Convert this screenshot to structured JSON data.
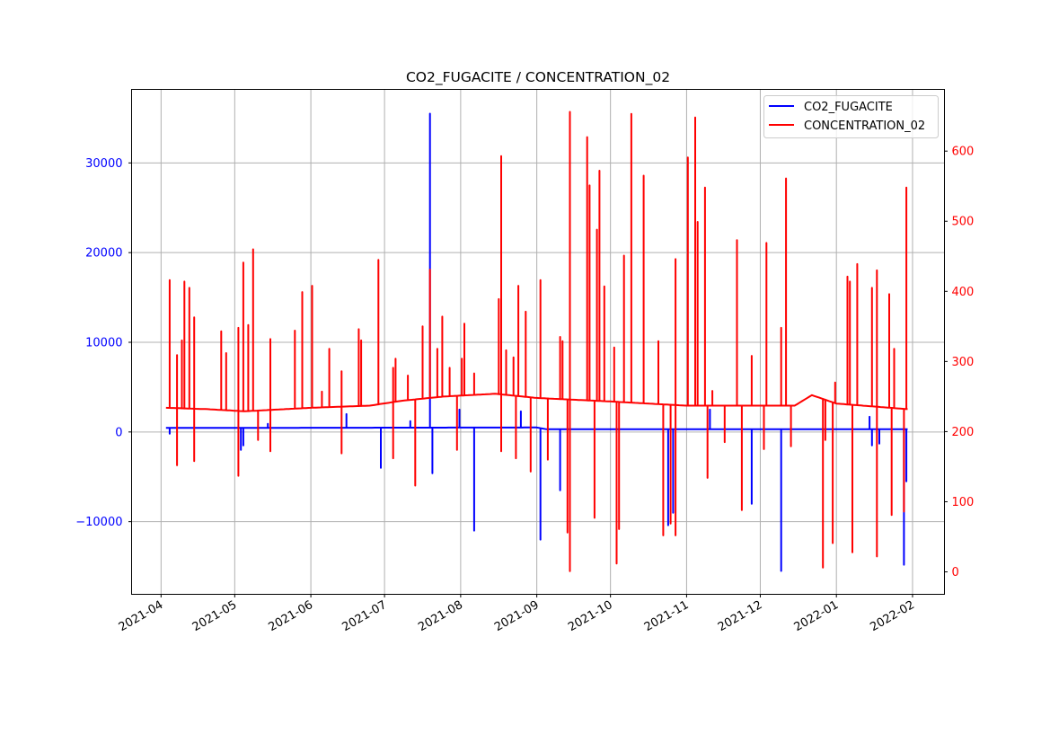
{
  "chart_data": {
    "type": "line",
    "title": "CO2_FUGACITE / CONCENTRATION_02",
    "xlabel": "",
    "ylabel_left": "",
    "ylabel_right": "",
    "xlim": [
      "2021-03-20",
      "2022-02-14"
    ],
    "ylim_left": [
      -18100,
      38200
    ],
    "ylim_right": [
      -32,
      688
    ],
    "grid": true,
    "legend_position": "top-right",
    "x_ticks": [
      "2021-04",
      "2021-05",
      "2021-06",
      "2021-07",
      "2021-08",
      "2021-09",
      "2021-10",
      "2021-11",
      "2021-12",
      "2022-01",
      "2022-02"
    ],
    "y_left_ticks": [
      -10000,
      0,
      10000,
      20000,
      30000
    ],
    "y_left_tick_labels": [
      "−10000",
      "0",
      "10000",
      "20000",
      "30000"
    ],
    "y_right_ticks": [
      0,
      100,
      200,
      300,
      400,
      500,
      600
    ],
    "y_right_tick_labels": [
      "0",
      "100",
      "200",
      "300",
      "400",
      "500",
      "600"
    ],
    "series": [
      {
        "name": "CO2_FUGACITE",
        "axis": "left",
        "color": "#0000ff",
        "start": "2021-04-03",
        "end": "2022-01-30",
        "baseline": [
          [
            "2021-04-03",
            450
          ],
          [
            "2021-09-01",
            500
          ],
          [
            "2021-09-05",
            300
          ],
          [
            "2022-01-30",
            300
          ]
        ],
        "spikes": [
          [
            "2021-04-04",
            -200
          ],
          [
            "2021-05-03",
            -2000
          ],
          [
            "2021-05-04",
            -1500
          ],
          [
            "2021-05-14",
            900
          ],
          [
            "2021-06-15",
            2000
          ],
          [
            "2021-06-29",
            -4000
          ],
          [
            "2021-07-11",
            1200
          ],
          [
            "2021-07-19",
            35500
          ],
          [
            "2021-07-20",
            -4600
          ],
          [
            "2021-07-31",
            2500
          ],
          [
            "2021-08-06",
            -11000
          ],
          [
            "2021-08-25",
            2300
          ],
          [
            "2021-09-02",
            -12000
          ],
          [
            "2021-09-10",
            -6500
          ],
          [
            "2021-10-24",
            -10400
          ],
          [
            "2021-10-26",
            -9000
          ],
          [
            "2021-11-10",
            2500
          ],
          [
            "2021-11-27",
            -8000
          ],
          [
            "2021-12-09",
            -15500
          ],
          [
            "2022-01-14",
            1700
          ],
          [
            "2022-01-15",
            -1500
          ],
          [
            "2022-01-18",
            -1300
          ],
          [
            "2022-01-28",
            -14800
          ],
          [
            "2022-01-29",
            -5500
          ]
        ]
      },
      {
        "name": "CONCENTRATION_02",
        "axis": "right",
        "color": "#ff0000",
        "start": "2021-04-03",
        "end": "2022-01-30",
        "baseline": [
          [
            "2021-04-03",
            234
          ],
          [
            "2021-04-20",
            232
          ],
          [
            "2021-05-05",
            229
          ],
          [
            "2021-06-01",
            234
          ],
          [
            "2021-06-25",
            237
          ],
          [
            "2021-07-08",
            244
          ],
          [
            "2021-07-25",
            250
          ],
          [
            "2021-08-15",
            254
          ],
          [
            "2021-09-01",
            248
          ],
          [
            "2021-10-01",
            243
          ],
          [
            "2021-11-01",
            237
          ],
          [
            "2021-12-15",
            237
          ],
          [
            "2021-12-22",
            252
          ],
          [
            "2022-01-01",
            240
          ],
          [
            "2022-01-30",
            232
          ]
        ],
        "spikes": [
          [
            "2021-04-04",
            416
          ],
          [
            "2021-04-07",
            309
          ],
          [
            "2021-04-07",
            152
          ],
          [
            "2021-04-09",
            330
          ],
          [
            "2021-04-10",
            414
          ],
          [
            "2021-04-12",
            405
          ],
          [
            "2021-04-14",
            363
          ],
          [
            "2021-04-14",
            158
          ],
          [
            "2021-04-25",
            343
          ],
          [
            "2021-04-27",
            312
          ],
          [
            "2021-05-02",
            348
          ],
          [
            "2021-05-02",
            137
          ],
          [
            "2021-05-04",
            441
          ],
          [
            "2021-05-06",
            352
          ],
          [
            "2021-05-08",
            460
          ],
          [
            "2021-05-10",
            188
          ],
          [
            "2021-05-15",
            332
          ],
          [
            "2021-05-15",
            172
          ],
          [
            "2021-05-25",
            344
          ],
          [
            "2021-05-28",
            399
          ],
          [
            "2021-06-01",
            408
          ],
          [
            "2021-06-05",
            257
          ],
          [
            "2021-06-08",
            318
          ],
          [
            "2021-06-13",
            286
          ],
          [
            "2021-06-13",
            169
          ],
          [
            "2021-06-20",
            346
          ],
          [
            "2021-06-21",
            330
          ],
          [
            "2021-06-28",
            445
          ],
          [
            "2021-07-04",
            291
          ],
          [
            "2021-07-04",
            162
          ],
          [
            "2021-07-05",
            304
          ],
          [
            "2021-07-10",
            280
          ],
          [
            "2021-07-13",
            123
          ],
          [
            "2021-07-16",
            350
          ],
          [
            "2021-07-19",
            431
          ],
          [
            "2021-07-22",
            318
          ],
          [
            "2021-07-24",
            364
          ],
          [
            "2021-07-27",
            291
          ],
          [
            "2021-07-30",
            174
          ],
          [
            "2021-08-01",
            304
          ],
          [
            "2021-08-02",
            354
          ],
          [
            "2021-08-06",
            283
          ],
          [
            "2021-08-16",
            389
          ],
          [
            "2021-08-17",
            593
          ],
          [
            "2021-08-17",
            172
          ],
          [
            "2021-08-19",
            316
          ],
          [
            "2021-08-22",
            306
          ],
          [
            "2021-08-23",
            162
          ],
          [
            "2021-08-24",
            408
          ],
          [
            "2021-08-27",
            371
          ],
          [
            "2021-08-29",
            143
          ],
          [
            "2021-09-02",
            416
          ],
          [
            "2021-09-05",
            160
          ],
          [
            "2021-09-10",
            335
          ],
          [
            "2021-09-11",
            329
          ],
          [
            "2021-09-13",
            56
          ],
          [
            "2021-09-14",
            656
          ],
          [
            "2021-09-14",
            1
          ],
          [
            "2021-09-21",
            620
          ],
          [
            "2021-09-22",
            551
          ],
          [
            "2021-09-24",
            77
          ],
          [
            "2021-09-25",
            488
          ],
          [
            "2021-09-26",
            572
          ],
          [
            "2021-09-28",
            407
          ],
          [
            "2021-10-02",
            320
          ],
          [
            "2021-10-03",
            12
          ],
          [
            "2021-10-04",
            61
          ],
          [
            "2021-10-06",
            451
          ],
          [
            "2021-10-09",
            653
          ],
          [
            "2021-10-14",
            565
          ],
          [
            "2021-10-20",
            329
          ],
          [
            "2021-10-22",
            52
          ],
          [
            "2021-10-25",
            69
          ],
          [
            "2021-10-27",
            52
          ],
          [
            "2021-10-27",
            446
          ],
          [
            "2021-11-01",
            591
          ],
          [
            "2021-11-04",
            648
          ],
          [
            "2021-11-05",
            499
          ],
          [
            "2021-11-08",
            548
          ],
          [
            "2021-11-09",
            134
          ],
          [
            "2021-11-11",
            258
          ],
          [
            "2021-11-16",
            185
          ],
          [
            "2021-11-21",
            473
          ],
          [
            "2021-11-23",
            88
          ],
          [
            "2021-11-27",
            308
          ],
          [
            "2021-12-02",
            175
          ],
          [
            "2021-12-03",
            469
          ],
          [
            "2021-12-03",
            425
          ],
          [
            "2021-12-09",
            348
          ],
          [
            "2021-12-11",
            561
          ],
          [
            "2021-12-13",
            179
          ],
          [
            "2021-12-26",
            6
          ],
          [
            "2021-12-27",
            188
          ],
          [
            "2021-12-30",
            41
          ],
          [
            "2021-12-31",
            270
          ],
          [
            "2022-01-05",
            421
          ],
          [
            "2022-01-06",
            414
          ],
          [
            "2022-01-07",
            28
          ],
          [
            "2022-01-09",
            439
          ],
          [
            "2022-01-15",
            405
          ],
          [
            "2022-01-17",
            430
          ],
          [
            "2022-01-17",
            22
          ],
          [
            "2022-01-22",
            396
          ],
          [
            "2022-01-23",
            81
          ],
          [
            "2022-01-24",
            318
          ],
          [
            "2022-01-28",
            86
          ],
          [
            "2022-01-29",
            548
          ]
        ]
      }
    ]
  }
}
